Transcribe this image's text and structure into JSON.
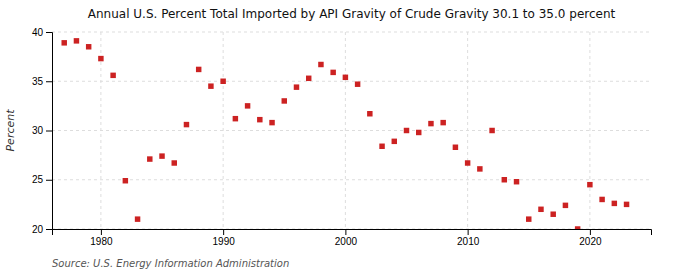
{
  "chart_data": {
    "type": "scatter",
    "title": "Annual U.S. Percent Total Imported by API Gravity of Crude Gravity 30.1 to 35.0 percent",
    "ylabel": "Percent",
    "source": "Source: U.S. Energy Information Administration",
    "color": "#cc2222",
    "marker": "square",
    "grid": true,
    "xlim": [
      1976,
      2025
    ],
    "xticks": [
      1980,
      1990,
      2000,
      2010,
      2020
    ],
    "ylim": [
      20,
      40
    ],
    "yticks": [
      20,
      25,
      30,
      35,
      40
    ],
    "x": [
      1977,
      1978,
      1979,
      1980,
      1981,
      1982,
      1983,
      1984,
      1985,
      1986,
      1987,
      1988,
      1989,
      1990,
      1991,
      1992,
      1993,
      1994,
      1995,
      1996,
      1997,
      1998,
      1999,
      2000,
      2001,
      2002,
      2003,
      2004,
      2005,
      2006,
      2007,
      2008,
      2009,
      2010,
      2011,
      2012,
      2013,
      2014,
      2015,
      2016,
      2017,
      2018,
      2019,
      2020,
      2021,
      2022,
      2023
    ],
    "values": [
      38.9,
      39.1,
      38.5,
      37.3,
      35.6,
      24.9,
      21.0,
      27.1,
      27.4,
      26.7,
      30.6,
      36.2,
      34.5,
      35.0,
      31.2,
      32.5,
      31.1,
      30.8,
      33.0,
      34.4,
      35.3,
      36.7,
      35.9,
      35.4,
      34.7,
      31.7,
      28.4,
      28.9,
      30.0,
      29.8,
      30.7,
      30.8,
      28.3,
      26.7,
      26.1,
      30.0,
      25.0,
      24.8,
      21.0,
      22.0,
      21.5,
      22.4,
      20.0,
      24.5,
      23.0,
      22.6,
      22.5
    ]
  }
}
